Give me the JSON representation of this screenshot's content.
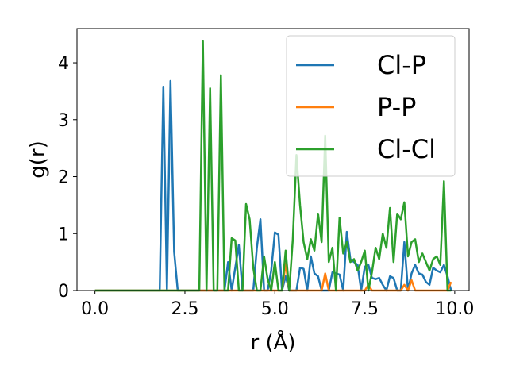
{
  "chart_data": {
    "type": "line",
    "title": "",
    "xlabel": "r (Å)",
    "ylabel": "g(r)",
    "xlim": [
      -0.5,
      10.4
    ],
    "ylim": [
      0,
      4.6
    ],
    "xticks": [
      "0.0",
      "2.5",
      "5.0",
      "7.5",
      "10.0"
    ],
    "yticks": [
      "0",
      "1",
      "2",
      "3",
      "4"
    ],
    "grid": false,
    "legend_position": "top-right",
    "series": [
      {
        "name": "Cl-P",
        "color": "#1f77b4",
        "x": [
          0.0,
          1.8,
          1.9,
          2.0,
          2.1,
          2.2,
          2.3,
          2.4,
          3.6,
          3.7,
          3.8,
          3.9,
          4.0,
          4.1,
          4.2,
          4.3,
          4.4,
          4.5,
          4.6,
          4.7,
          4.8,
          4.9,
          5.0,
          5.1,
          5.2,
          5.3,
          5.4,
          5.5,
          5.6,
          5.7,
          5.8,
          5.9,
          6.0,
          6.1,
          6.2,
          6.3,
          6.4,
          6.5,
          6.6,
          6.7,
          6.8,
          6.9,
          7.0,
          7.1,
          7.2,
          7.3,
          7.4,
          7.5,
          7.6,
          7.7,
          7.8,
          7.9,
          8.0,
          8.1,
          8.2,
          8.3,
          8.4,
          8.5,
          8.6,
          8.7,
          8.8,
          8.9,
          9.0,
          9.1,
          9.2,
          9.3,
          9.4,
          9.5,
          9.6,
          9.7,
          9.8,
          9.9
        ],
        "y": [
          0,
          0,
          3.58,
          0,
          3.68,
          0.68,
          0,
          0,
          0,
          0.5,
          0,
          0.4,
          0.8,
          0,
          0,
          0,
          0,
          0.75,
          1.25,
          0,
          0,
          0.35,
          1.02,
          0.98,
          0,
          0.25,
          0,
          0,
          0,
          0.4,
          0.38,
          0,
          0.6,
          0.3,
          0.25,
          0,
          0,
          0,
          0.32,
          0.3,
          0.28,
          0,
          1.03,
          0.55,
          0.5,
          0.45,
          0,
          0.42,
          0.45,
          0.22,
          0.2,
          0.22,
          0.1,
          0,
          0.25,
          0.22,
          0,
          0,
          0.85,
          0,
          0.3,
          0.45,
          0.3,
          0.28,
          0.15,
          0.1,
          0.4,
          0.35,
          0.32,
          0.45,
          0.25,
          0
        ],
        "comment": ""
      },
      {
        "name": "P-P",
        "color": "#ff7f0e",
        "x": [
          0.0,
          5.2,
          5.3,
          5.4,
          6.3,
          6.4,
          6.5,
          6.6,
          7.5,
          7.6,
          7.7,
          8.5,
          8.6,
          8.7,
          8.8,
          8.9,
          9.0,
          9.8,
          9.9
        ],
        "y": [
          0,
          0,
          0.48,
          0,
          0,
          0.3,
          0,
          0,
          0,
          0.1,
          0,
          0,
          0.1,
          0,
          0.18,
          0,
          0,
          0,
          0.15
        ]
      },
      {
        "name": "Cl-Cl",
        "color": "#2ca02c",
        "x": [
          0.0,
          2.9,
          3.0,
          3.1,
          3.2,
          3.3,
          3.4,
          3.5,
          3.6,
          3.7,
          3.8,
          3.9,
          4.0,
          4.1,
          4.2,
          4.3,
          4.4,
          4.5,
          4.6,
          4.7,
          4.8,
          4.9,
          5.0,
          5.1,
          5.2,
          5.3,
          5.4,
          5.5,
          5.6,
          5.7,
          5.8,
          5.9,
          6.0,
          6.1,
          6.2,
          6.3,
          6.4,
          6.5,
          6.6,
          6.7,
          6.8,
          6.9,
          7.0,
          7.1,
          7.2,
          7.3,
          7.4,
          7.5,
          7.6,
          7.7,
          7.8,
          7.9,
          8.0,
          8.1,
          8.2,
          8.3,
          8.4,
          8.5,
          8.6,
          8.7,
          8.8,
          8.9,
          9.0,
          9.1,
          9.2,
          9.3,
          9.4,
          9.5,
          9.6,
          9.7,
          9.8,
          9.9
        ],
        "y": [
          0,
          0,
          4.38,
          0,
          3.55,
          0,
          0,
          3.78,
          0,
          0,
          0.92,
          0.88,
          0,
          0,
          1.52,
          1.25,
          0.4,
          0,
          0,
          0.6,
          0.2,
          0,
          0.5,
          0,
          0,
          0.7,
          0,
          0.9,
          2.38,
          1.5,
          0.85,
          0.55,
          0.9,
          0.7,
          1.35,
          0.85,
          2.72,
          0.5,
          0.75,
          0,
          1.28,
          0.65,
          0.85,
          0.5,
          0.55,
          0.35,
          0.5,
          0.7,
          0,
          0.32,
          0.75,
          0.55,
          1.0,
          0.75,
          1.45,
          0.5,
          1.35,
          1.25,
          1.55,
          0.6,
          0.85,
          0.9,
          0.5,
          0.65,
          0.5,
          0.35,
          0.55,
          0.6,
          0.45,
          1.92,
          0,
          0
        ],
        "comment": ""
      }
    ]
  }
}
